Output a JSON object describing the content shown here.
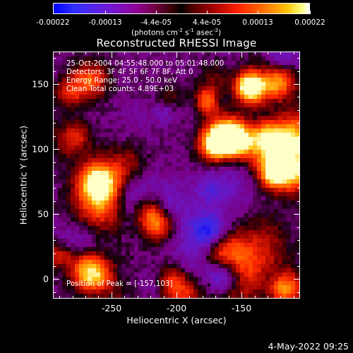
{
  "colorbar": {
    "tick_labels": [
      "-0.00022",
      "-0.00013",
      "-4.4e-05",
      "4.4e-05",
      "0.00013",
      "0.00022"
    ],
    "unit_prefix": "(photons cm",
    "unit_sup1": "-2",
    "unit_mid1": " s",
    "unit_sup2": "-1",
    "unit_mid2": " asec",
    "unit_sup3": "-2",
    "unit_suffix": ")"
  },
  "title": "Reconstructed RHESSI Image",
  "info": {
    "time_range": "25-Oct-2004 04:55:48.000 to 05:01:48.000",
    "detectors": "Detectors: 3F 4F 5F 6F 7F 8F, Att 0",
    "energy_range": "Energy Range: 25.0 - 50.0 keV",
    "clean_counts": "Clean      Total counts: 4.89E+03",
    "peak_position": "Position of Peak = [-157,103]"
  },
  "axes": {
    "xlabel": "Heliocentric X (arcsec)",
    "ylabel": "Heliocentric Y (arcsec)",
    "x_tick_labels": [
      "-250",
      "-200",
      "-150"
    ],
    "y_tick_labels": [
      "150",
      "100",
      "50",
      "0"
    ]
  },
  "footer": {
    "timestamp": "4-May-2022 09:25"
  },
  "colors": {
    "background": "#000000",
    "axes": "#ffffff",
    "colormap": "blue-purple-black-red-yellow-white"
  },
  "chart_data": {
    "type": "heatmap",
    "title": "Reconstructed RHESSI Image",
    "xlabel": "Heliocentric X (arcsec)",
    "ylabel": "Heliocentric Y (arcsec)",
    "xlim": [
      -295,
      -105
    ],
    "ylim": [
      -15,
      175
    ],
    "colorbar_range": [
      -0.00022,
      0.00022
    ],
    "colorbar_unit": "photons cm-2 s-1 asec-2",
    "x_ticks": [
      -250,
      -200,
      -150
    ],
    "y_ticks": [
      0,
      50,
      100,
      150
    ],
    "peak_position": [
      -157,
      103
    ],
    "grid": false
  }
}
